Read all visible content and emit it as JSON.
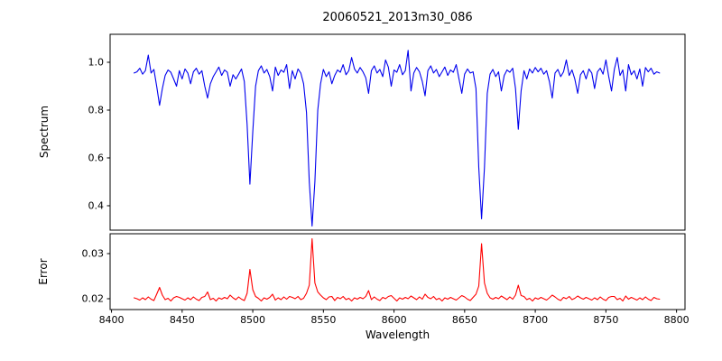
{
  "chart_data": {
    "type": "line",
    "title": "20060521_2013m30_086",
    "xlabel": "Wavelength",
    "grid": false,
    "legend": "none",
    "xlim": [
      8399,
      8806
    ],
    "x_ticks": [
      8400,
      8450,
      8500,
      8550,
      8600,
      8650,
      8700,
      8750,
      8800
    ],
    "x_tick_labels": [
      "8400",
      "8450",
      "8500",
      "8550",
      "8600",
      "8650",
      "8700",
      "8750",
      "8800"
    ],
    "absorption_features": [
      {
        "wavelength": 8434,
        "min_value": 0.82
      },
      {
        "wavelength": 8468,
        "min_value": 0.85
      },
      {
        "wavelength": 8498,
        "min_value": 0.49
      },
      {
        "wavelength": 8542,
        "min_value": 0.32
      },
      {
        "wavelength": 8662,
        "min_value": 0.35
      },
      {
        "wavelength": 8688,
        "min_value": 0.72
      }
    ],
    "x": [
      8416,
      8418,
      8420,
      8422,
      8424,
      8426,
      8428,
      8430,
      8432,
      8434,
      8436,
      8438,
      8440,
      8442,
      8444,
      8446,
      8448,
      8450,
      8452,
      8454,
      8456,
      8458,
      8460,
      8462,
      8464,
      8466,
      8468,
      8470,
      8472,
      8474,
      8476,
      8478,
      8480,
      8482,
      8484,
      8486,
      8488,
      8490,
      8492,
      8494,
      8496,
      8498,
      8500,
      8502,
      8504,
      8506,
      8508,
      8510,
      8512,
      8514,
      8516,
      8518,
      8520,
      8522,
      8524,
      8526,
      8528,
      8530,
      8532,
      8534,
      8536,
      8538,
      8540,
      8542,
      8544,
      8546,
      8548,
      8550,
      8552,
      8554,
      8556,
      8558,
      8560,
      8562,
      8564,
      8566,
      8568,
      8570,
      8572,
      8574,
      8576,
      8578,
      8580,
      8582,
      8584,
      8586,
      8588,
      8590,
      8592,
      8594,
      8596,
      8598,
      8600,
      8602,
      8604,
      8606,
      8608,
      8610,
      8612,
      8614,
      8616,
      8618,
      8620,
      8622,
      8624,
      8626,
      8628,
      8630,
      8632,
      8634,
      8636,
      8638,
      8640,
      8642,
      8644,
      8646,
      8648,
      8650,
      8652,
      8654,
      8656,
      8658,
      8660,
      8662,
      8664,
      8666,
      8668,
      8670,
      8672,
      8674,
      8676,
      8678,
      8680,
      8682,
      8684,
      8686,
      8688,
      8690,
      8692,
      8694,
      8696,
      8698,
      8700,
      8702,
      8704,
      8706,
      8708,
      8710,
      8712,
      8714,
      8716,
      8718,
      8720,
      8722,
      8724,
      8726,
      8728,
      8730,
      8732,
      8734,
      8736,
      8738,
      8740,
      8742,
      8744,
      8746,
      8748,
      8750,
      8752,
      8754,
      8756,
      8758,
      8760,
      8762,
      8764,
      8766,
      8768,
      8770,
      8772,
      8774,
      8776,
      8778,
      8780,
      8782,
      8784,
      8786,
      8788
    ],
    "panels": [
      {
        "name": "spectrum",
        "ylabel": "Spectrum",
        "ylim": [
          0.298,
          1.117
        ],
        "y_ticks": [
          0.4,
          0.6,
          0.8,
          1.0
        ],
        "y_tick_labels": [
          "0.4",
          "0.6",
          "0.8",
          "1.0"
        ],
        "line_color": "#0000ee",
        "y": [
          0.955,
          0.96,
          0.975,
          0.95,
          0.965,
          1.03,
          0.955,
          0.97,
          0.9,
          0.82,
          0.89,
          0.945,
          0.968,
          0.958,
          0.93,
          0.9,
          0.965,
          0.93,
          0.972,
          0.955,
          0.91,
          0.96,
          0.975,
          0.95,
          0.965,
          0.9,
          0.85,
          0.91,
          0.94,
          0.96,
          0.98,
          0.945,
          0.968,
          0.958,
          0.9,
          0.948,
          0.93,
          0.95,
          0.972,
          0.92,
          0.74,
          0.49,
          0.71,
          0.9,
          0.965,
          0.985,
          0.955,
          0.97,
          0.94,
          0.88,
          0.98,
          0.945,
          0.968,
          0.958,
          0.99,
          0.89,
          0.965,
          0.93,
          0.972,
          0.955,
          0.91,
          0.79,
          0.5,
          0.315,
          0.5,
          0.8,
          0.91,
          0.97,
          0.94,
          0.96,
          0.91,
          0.945,
          0.968,
          0.958,
          0.99,
          0.948,
          0.965,
          1.02,
          0.972,
          0.955,
          0.978,
          0.96,
          0.935,
          0.87,
          0.965,
          0.985,
          0.955,
          0.97,
          0.94,
          1.01,
          0.98,
          0.9,
          0.968,
          0.958,
          0.99,
          0.948,
          0.965,
          1.05,
          0.88,
          0.955,
          0.978,
          0.96,
          0.92,
          0.86,
          0.965,
          0.985,
          0.955,
          0.97,
          0.94,
          0.96,
          0.98,
          0.945,
          0.968,
          0.958,
          0.99,
          0.93,
          0.87,
          0.95,
          0.972,
          0.955,
          0.96,
          0.89,
          0.56,
          0.345,
          0.56,
          0.87,
          0.95,
          0.97,
          0.94,
          0.96,
          0.88,
          0.945,
          0.968,
          0.958,
          0.975,
          0.89,
          0.72,
          0.88,
          0.965,
          0.93,
          0.972,
          0.955,
          0.978,
          0.96,
          0.975,
          0.95,
          0.965,
          0.92,
          0.85,
          0.955,
          0.97,
          0.94,
          0.96,
          1.01,
          0.945,
          0.968,
          0.93,
          0.87,
          0.948,
          0.965,
          0.93,
          0.972,
          0.955,
          0.89,
          0.96,
          0.975,
          0.95,
          1.01,
          0.94,
          0.88,
          0.97,
          1.02,
          0.945,
          0.968,
          0.88,
          0.99,
          0.948,
          0.965,
          0.93,
          0.972,
          0.9,
          0.978,
          0.96,
          0.975,
          0.95,
          0.96,
          0.955
        ]
      },
      {
        "name": "error",
        "ylabel": "Error",
        "ylim": [
          0.0176,
          0.0344
        ],
        "y_ticks": [
          0.02,
          0.03
        ],
        "y_tick_labels": [
          "0.02",
          "0.03"
        ],
        "line_color": "#ff0000",
        "y": [
          0.0202,
          0.02,
          0.0197,
          0.0202,
          0.0198,
          0.0204,
          0.0199,
          0.0196,
          0.021,
          0.0225,
          0.0208,
          0.0198,
          0.0201,
          0.0195,
          0.0202,
          0.0205,
          0.0203,
          0.02,
          0.0197,
          0.0202,
          0.0198,
          0.0204,
          0.0199,
          0.0196,
          0.0203,
          0.0205,
          0.0215,
          0.0198,
          0.0201,
          0.0195,
          0.0202,
          0.0199,
          0.0203,
          0.02,
          0.0208,
          0.0202,
          0.0198,
          0.0204,
          0.0199,
          0.0196,
          0.0212,
          0.0265,
          0.022,
          0.0205,
          0.0201,
          0.0195,
          0.0202,
          0.0199,
          0.0203,
          0.021,
          0.0197,
          0.0202,
          0.0198,
          0.0204,
          0.0199,
          0.0205,
          0.0203,
          0.02,
          0.0205,
          0.0198,
          0.0201,
          0.0212,
          0.023,
          0.0333,
          0.0235,
          0.0215,
          0.0208,
          0.0202,
          0.0198,
          0.0204,
          0.0205,
          0.0196,
          0.0203,
          0.02,
          0.0205,
          0.0198,
          0.0201,
          0.0195,
          0.0202,
          0.0199,
          0.0203,
          0.02,
          0.0205,
          0.0218,
          0.0198,
          0.0204,
          0.0199,
          0.0196,
          0.0203,
          0.02,
          0.0205,
          0.0207,
          0.0201,
          0.0195,
          0.0202,
          0.0199,
          0.0203,
          0.02,
          0.0206,
          0.0202,
          0.0198,
          0.0204,
          0.0199,
          0.021,
          0.0203,
          0.02,
          0.0205,
          0.0198,
          0.0201,
          0.0195,
          0.0202,
          0.0199,
          0.0203,
          0.02,
          0.0197,
          0.0202,
          0.0207,
          0.0204,
          0.0199,
          0.0196,
          0.0203,
          0.021,
          0.0228,
          0.0322,
          0.0235,
          0.0212,
          0.0202,
          0.0199,
          0.0203,
          0.02,
          0.0206,
          0.0202,
          0.0198,
          0.0204,
          0.0199,
          0.0208,
          0.023,
          0.0207,
          0.0205,
          0.0198,
          0.0201,
          0.0195,
          0.0202,
          0.0199,
          0.0203,
          0.02,
          0.0197,
          0.0202,
          0.0208,
          0.0204,
          0.0199,
          0.0196,
          0.0203,
          0.02,
          0.0205,
          0.0198,
          0.0201,
          0.0206,
          0.0202,
          0.0199,
          0.0203,
          0.02,
          0.0197,
          0.0202,
          0.0198,
          0.0204,
          0.0199,
          0.0196,
          0.0203,
          0.0205,
          0.0205,
          0.0198,
          0.0201,
          0.0195,
          0.0206,
          0.0199,
          0.0203,
          0.02,
          0.0197,
          0.0202,
          0.0198,
          0.0204,
          0.0199,
          0.0196,
          0.0203,
          0.02,
          0.0199
        ]
      }
    ],
    "colors": {
      "spectrum_line": "#0000ee",
      "error_line": "#ff0000",
      "axis": "#000000",
      "background": "#ffffff"
    }
  }
}
